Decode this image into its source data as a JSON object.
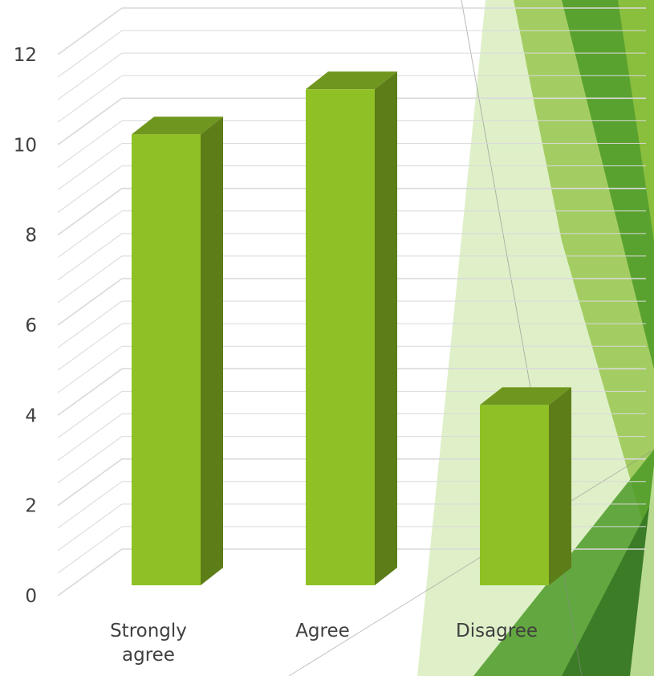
{
  "chart_data": {
    "type": "bar",
    "style": "3d-column",
    "categories": [
      "Strongly agree",
      "Agree",
      "Disagree"
    ],
    "values": [
      10,
      11,
      4
    ],
    "title": "",
    "xlabel": "",
    "ylabel": "",
    "ylim": [
      0,
      12
    ],
    "yticks": [
      0,
      2,
      4,
      6,
      8,
      10,
      12
    ],
    "grid": true,
    "legend": "none"
  },
  "colors": {
    "bar_front": "#8fc126",
    "bar_side": "#5c7d18",
    "bar_top": "#6f961e",
    "grid": "#d9d9d9",
    "text": "#404040",
    "accent_light": "#c5e39c",
    "accent_mid": "#8fc13f",
    "accent_dark": "#4e9a28",
    "accent_deep": "#2f6e1f"
  },
  "icons": {
    "decoration": "green-triangle-facets"
  }
}
